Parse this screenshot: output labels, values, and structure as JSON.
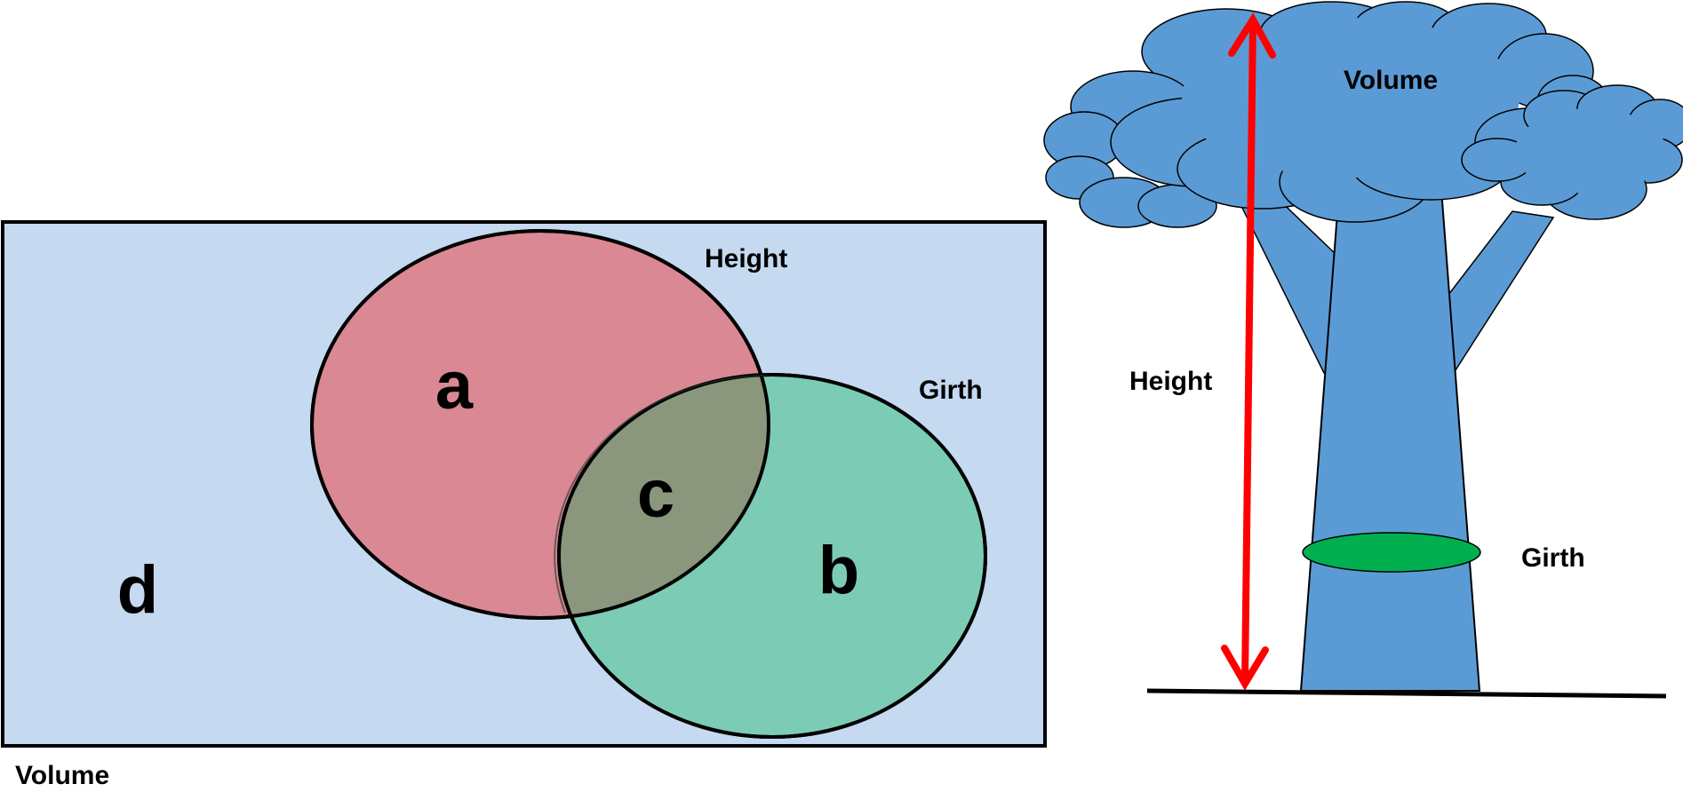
{
  "venn": {
    "label_a": "a",
    "label_b": "b",
    "label_c": "c",
    "label_d": "d",
    "set_height_label": "Height",
    "set_girth_label": "Girth",
    "universe_label": "Volume"
  },
  "tree": {
    "volume_label": "Volume",
    "height_label": "Height",
    "girth_label": "Girth"
  },
  "colors": {
    "universe_fill": "#c5d9f0",
    "height_set_fill": "#d98894",
    "girth_set_fill": "#7ccbb5",
    "intersection_fill": "#8a977c",
    "tree_fill": "#5b9bd5",
    "girth_band": "#00b050",
    "arrow": "#ff0000"
  }
}
